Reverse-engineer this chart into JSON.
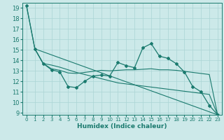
{
  "title": "",
  "xlabel": "Humidex (Indice chaleur)",
  "ylabel": "",
  "bg_color": "#cce9e9",
  "grid_color": "#aad4d4",
  "line_color": "#1a7a6e",
  "xlim": [
    -0.5,
    23.5
  ],
  "ylim": [
    8.8,
    19.5
  ],
  "yticks": [
    9,
    10,
    11,
    12,
    13,
    14,
    15,
    16,
    17,
    18,
    19
  ],
  "xticks": [
    0,
    1,
    2,
    3,
    4,
    5,
    6,
    7,
    8,
    9,
    10,
    11,
    12,
    13,
    14,
    15,
    16,
    17,
    18,
    19,
    20,
    21,
    22,
    23
  ],
  "lines": [
    {
      "x": [
        0,
        1,
        2,
        3,
        4,
        5,
        6,
        7,
        8,
        9,
        10,
        11,
        12,
        13,
        14,
        15,
        16,
        17,
        18,
        19,
        20,
        21,
        22,
        23
      ],
      "y": [
        19.2,
        15.1,
        13.7,
        13.1,
        12.9,
        11.5,
        11.4,
        12.0,
        12.5,
        12.6,
        12.5,
        13.8,
        13.5,
        13.3,
        15.2,
        15.6,
        14.4,
        14.2,
        13.7,
        12.9,
        11.5,
        11.0,
        9.7,
        8.8
      ],
      "marker": true
    },
    {
      "x": [
        0,
        1,
        2,
        3,
        4,
        5,
        6,
        7,
        8,
        9,
        10,
        11,
        12,
        13,
        14,
        15,
        16,
        17,
        18,
        19,
        20,
        21,
        22,
        23
      ],
      "y": [
        19.2,
        15.1,
        13.7,
        13.2,
        13.05,
        12.8,
        12.75,
        12.85,
        12.95,
        13.05,
        13.0,
        13.05,
        13.1,
        13.1,
        13.15,
        13.2,
        13.1,
        13.1,
        13.05,
        12.95,
        12.85,
        12.75,
        12.65,
        8.8
      ],
      "marker": false
    },
    {
      "x": [
        1,
        2,
        3,
        4,
        5,
        6,
        7,
        8,
        9,
        10,
        11,
        12,
        13,
        14,
        15,
        16,
        17,
        18,
        19,
        20,
        21,
        22,
        23
      ],
      "y": [
        15.1,
        13.7,
        13.55,
        13.35,
        13.1,
        12.85,
        12.65,
        12.45,
        12.25,
        12.05,
        11.85,
        11.75,
        11.65,
        11.55,
        11.45,
        11.35,
        11.25,
        11.15,
        11.05,
        10.95,
        10.85,
        10.75,
        8.8
      ],
      "marker": false
    },
    {
      "x": [
        1,
        23
      ],
      "y": [
        15.1,
        8.8
      ],
      "marker": false
    }
  ]
}
